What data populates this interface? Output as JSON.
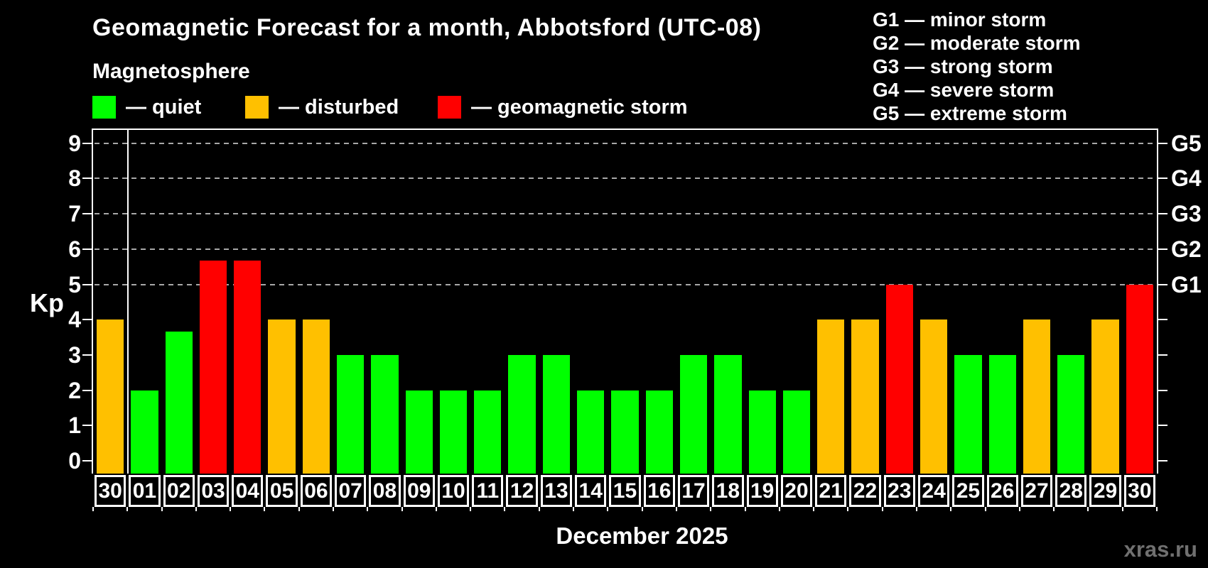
{
  "header": {
    "title": "Geomagnetic Forecast for a month, Abbotsford (UTC-08)",
    "subtitle": "Magnetosphere"
  },
  "legend": {
    "items": [
      {
        "name": "quiet",
        "label": "— quiet",
        "color": "#00ff00"
      },
      {
        "name": "disturbed",
        "label": "— disturbed",
        "color": "#ffc000"
      },
      {
        "name": "geomagnetic-storm",
        "label": "— geomagnetic storm",
        "color": "#ff0000"
      }
    ]
  },
  "gscale_legend": {
    "items": [
      "G1 — minor storm",
      "G2 — moderate storm",
      "G3 — strong storm",
      "G4 — severe storm",
      "G5 — extreme storm"
    ]
  },
  "watermark": "xras.ru",
  "chart_data": {
    "type": "bar",
    "title": "Geomagnetic Forecast for a month, Abbotsford (UTC-08)",
    "subtitle": "Magnetosphere",
    "xlabel": "December 2025",
    "ylabel": "Kp",
    "ylim": [
      0,
      9
    ],
    "yticks": [
      0,
      1,
      2,
      3,
      4,
      5,
      6,
      7,
      8,
      9
    ],
    "grid_levels": [
      5,
      6,
      7,
      8,
      9
    ],
    "grid": "dashed-horizontal",
    "legend_position": "top-left",
    "background": "#000000",
    "axis_color": "#ffffff",
    "right_axis": [
      {
        "kp": 5,
        "label": "G1"
      },
      {
        "kp": 6,
        "label": "G2"
      },
      {
        "kp": 7,
        "label": "G3"
      },
      {
        "kp": 8,
        "label": "G4"
      },
      {
        "kp": 9,
        "label": "G5"
      }
    ],
    "categories": [
      "30",
      "01",
      "02",
      "03",
      "04",
      "05",
      "06",
      "07",
      "08",
      "09",
      "10",
      "11",
      "12",
      "13",
      "14",
      "15",
      "16",
      "17",
      "18",
      "19",
      "20",
      "21",
      "22",
      "23",
      "24",
      "25",
      "26",
      "27",
      "28",
      "29",
      "30"
    ],
    "values": [
      4,
      2,
      3.67,
      5.67,
      5.67,
      4,
      4,
      3,
      3,
      2,
      2,
      2,
      3,
      3,
      2,
      2,
      2,
      3,
      3,
      2,
      2,
      4,
      4,
      5,
      4,
      3,
      3,
      4,
      3,
      4,
      5
    ],
    "statuses": [
      "disturbed",
      "quiet",
      "quiet",
      "geomagnetic_storm",
      "geomagnetic_storm",
      "disturbed",
      "disturbed",
      "quiet",
      "quiet",
      "quiet",
      "quiet",
      "quiet",
      "quiet",
      "quiet",
      "quiet",
      "quiet",
      "quiet",
      "quiet",
      "quiet",
      "quiet",
      "quiet",
      "disturbed",
      "disturbed",
      "geomagnetic_storm",
      "disturbed",
      "quiet",
      "quiet",
      "disturbed",
      "quiet",
      "disturbed",
      "geomagnetic_storm"
    ],
    "status_colors": {
      "quiet": "#00ff00",
      "disturbed": "#ffc000",
      "geomagnetic_storm": "#ff0000"
    },
    "prev_month_separator_after_index": 0
  }
}
